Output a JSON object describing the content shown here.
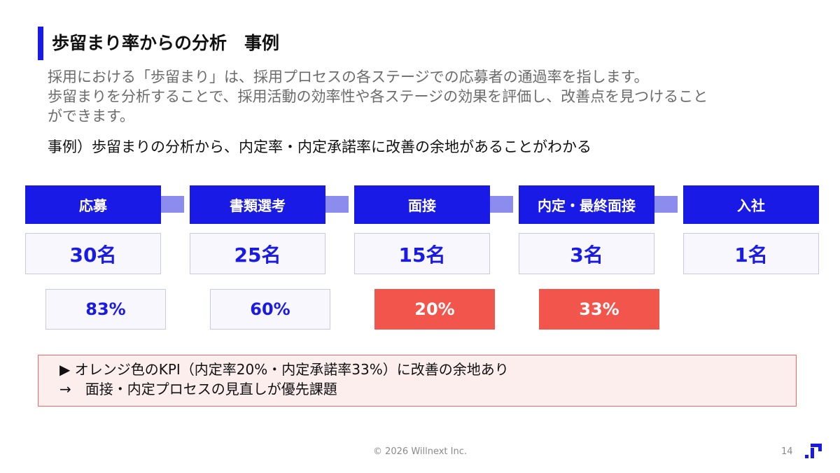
{
  "slide": {
    "title": "歩留まり率からの分析　事例",
    "description": [
      "採用における「歩留まり」は、採用プロセスの各ステージでの応募者の通過率を指します。",
      "歩留まりを分析することで、採用活動の効率性や各ステージの効果を評価し、改善点を見つけること",
      "ができます。"
    ],
    "example": "事例）歩留まりの分析から、内定率・内定承諾率に改善の余地があることがわかる"
  },
  "funnel": {
    "stages": [
      {
        "label": "応募",
        "count": "30名",
        "rate": "83%",
        "highlight": false
      },
      {
        "label": "書類選考",
        "count": "25名",
        "rate": "60%",
        "highlight": false
      },
      {
        "label": "面接",
        "count": "15名",
        "rate": "20%",
        "highlight": true
      },
      {
        "label": "内定・最終面接",
        "count": "3名",
        "rate": "33%",
        "highlight": true
      },
      {
        "label": "入社",
        "count": "1名"
      }
    ]
  },
  "note": {
    "line1": "▶ オレンジ色のKPI（内定率20%・内定承諾率33%）に改善の余地あり",
    "line2": "→　面接・内定プロセスの見直しが優先課題"
  },
  "footer": {
    "copyright": "© 2026 Willnext Inc.",
    "page": "14"
  },
  "colors": {
    "accent": "#1a1ae6",
    "alert": "#f2554b"
  },
  "icons": {
    "logo": "willnext-logo-icon"
  }
}
